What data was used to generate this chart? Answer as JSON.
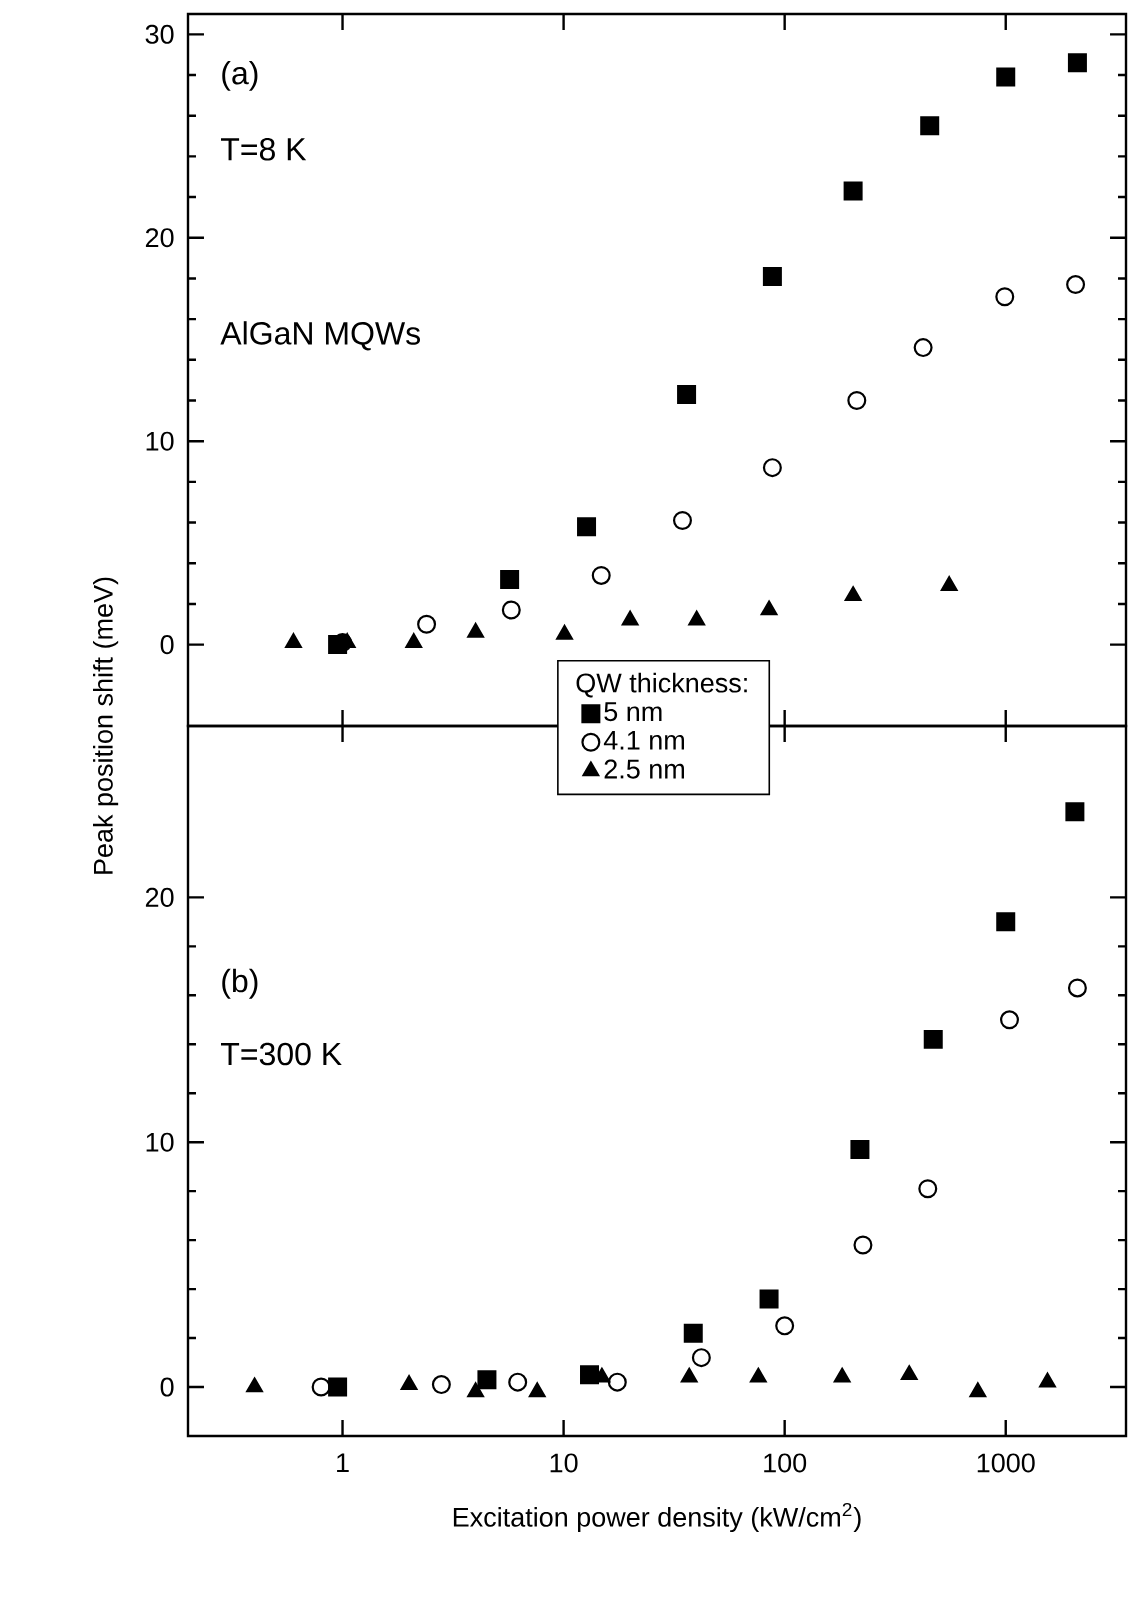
{
  "chart_data": [
    {
      "type": "scatter",
      "ylabel": "Peak position shift (meV)",
      "log": "x",
      "xlim": [
        0.2,
        3500
      ],
      "xticks": [
        1,
        10,
        100,
        1000
      ],
      "ylim": [
        -4,
        31
      ],
      "yticks": [
        0,
        10,
        20,
        30
      ],
      "tick_labels": "y",
      "annotations": [
        "(a)",
        "T=8 K",
        "AlGaN MQWs"
      ],
      "series": [
        {
          "color": "#000000",
          "marker": "square",
          "x": [
            0.95,
            5.7,
            12.7,
            36,
            88,
            204,
            453,
            1000,
            2110
          ],
          "values": [
            0,
            3.2,
            5.8,
            12.3,
            18.1,
            22.3,
            25.5,
            27.9,
            28.6
          ]
        },
        {
          "color": "#000000",
          "marker": "circle",
          "x": [
            1.0,
            2.4,
            5.8,
            14.8,
            34.5,
            88,
            212,
            423,
            990,
            2070
          ],
          "values": [
            0.1,
            1.0,
            1.7,
            3.4,
            6.1,
            8.7,
            12.0,
            14.6,
            17.1,
            17.7
          ]
        },
        {
          "color": "#000000",
          "marker": "triangle",
          "x": [
            0.6,
            1.05,
            2.1,
            4.0,
            10.1,
            20,
            40,
            85,
            204,
            555
          ],
          "values": [
            0.1,
            0.1,
            0.1,
            0.6,
            0.5,
            1.2,
            1.2,
            1.7,
            2.4,
            2.9
          ]
        }
      ]
    },
    {
      "type": "scatter",
      "xlabel": "Excitation power density (kW/cm$^{2}$)",
      "log": "x",
      "xlim": [
        0.2,
        3500
      ],
      "xticks": [
        1,
        10,
        100,
        1000
      ],
      "ylim": [
        -2,
        27
      ],
      "yticks": [
        0,
        10,
        20
      ],
      "legend": "top",
      "legend_title": "QW thickness:",
      "annotations": [
        "(b)",
        "T=300 K"
      ],
      "series": [
        {
          "name": "5 nm",
          "color": "#000000",
          "marker": "square",
          "x": [
            0.95,
            4.5,
            13.1,
            38.6,
            85,
            219,
            470,
            1000,
            2055
          ],
          "values": [
            0,
            0.3,
            0.5,
            2.2,
            3.6,
            9.7,
            14.2,
            19.0,
            23.5
          ]
        },
        {
          "name": "4.1 nm",
          "color": "#000000",
          "marker": "circle",
          "x": [
            0.8,
            2.8,
            6.2,
            17.5,
            42,
            100,
            226,
            444,
            1040,
            2110
          ],
          "values": [
            0,
            0.1,
            0.2,
            0.2,
            1.2,
            2.5,
            5.8,
            8.1,
            15.0,
            16.3
          ]
        },
        {
          "name": "2.5 nm",
          "color": "#000000",
          "marker": "triangle",
          "x": [
            0.4,
            2.0,
            4.0,
            7.6,
            14.9,
            37,
            76,
            182,
            366,
            748,
            1545
          ],
          "values": [
            0,
            0.1,
            -0.2,
            -0.2,
            0.4,
            0.4,
            0.4,
            0.4,
            0.5,
            -0.2,
            0.2
          ]
        }
      ]
    }
  ]
}
